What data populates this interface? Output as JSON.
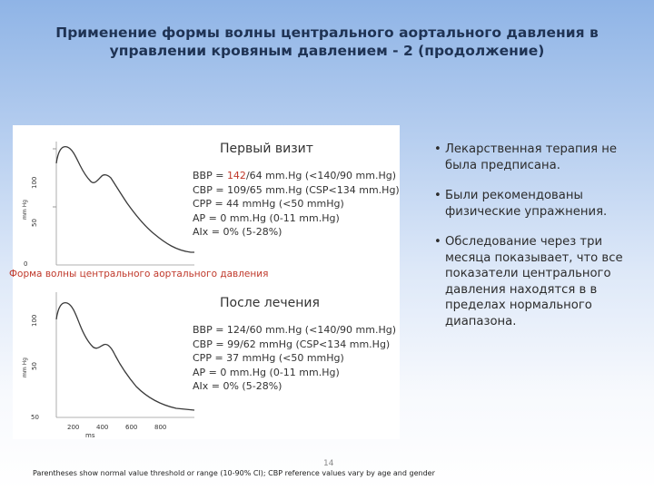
{
  "title": {
    "line1": "Применение формы волны центрального аортального давления в",
    "line2": "управлении кровяным давлением - 2 (продолжение)"
  },
  "chart_data": [
    {
      "type": "line",
      "heading": "Первый визит",
      "ylabel": "mm Hg",
      "y_ticks": [
        "0",
        "50",
        "100"
      ],
      "series_shape": "waveform",
      "stats": [
        {
          "prefix": "BBP = ",
          "highlight": "142",
          "suffix": "/64 mm.Hg (<140/90 mm.Hg)"
        },
        {
          "prefix": "CBP = 109/65 mm.Hg (CSP<134 mm.Hg)",
          "highlight": "",
          "suffix": ""
        },
        {
          "prefix": "CPP = 44 mmHg (<50 mmHg)",
          "highlight": "",
          "suffix": ""
        },
        {
          "prefix": "AP = 0 mm.Hg (0-11 mm.Hg)",
          "highlight": "",
          "suffix": ""
        },
        {
          "prefix": "AIx = 0% (5-28%)",
          "highlight": "",
          "suffix": ""
        }
      ]
    },
    {
      "type": "line",
      "heading": "После лечения",
      "ylabel": "mm Hg",
      "xlabel": "ms",
      "y_ticks": [
        "50",
        "50",
        "100"
      ],
      "x_ticks": [
        "200",
        "400",
        "600",
        "800"
      ],
      "series_shape": "waveform",
      "stats": [
        {
          "prefix": "BBP = 124/60 mm.Hg (<140/90 mm.Hg)",
          "highlight": "",
          "suffix": ""
        },
        {
          "prefix": "CBP = 99/62 mmHg (CSP<134 mm.Hg)",
          "highlight": "",
          "suffix": ""
        },
        {
          "prefix": "CPP = 37 mmHg (<50 mmHg)",
          "highlight": "",
          "suffix": ""
        },
        {
          "prefix": "AP = 0 mm.Hg (0-11 mm.Hg)",
          "highlight": "",
          "suffix": ""
        },
        {
          "prefix": "AIx = 0% (5-28%)",
          "highlight": "",
          "suffix": ""
        }
      ]
    }
  ],
  "caption": "Форма волны центрального аортального давления",
  "bullets": [
    "Лекарственная терапия не была предписана.",
    "Были рекомендованы физические упражнения.",
    "Обследование через три месяца показывает, что все показатели центрального давления находятся в в пределах нормального диапазона."
  ],
  "page_number": "14",
  "footnote": "Parentheses show normal value threshold or range (10-90% CI); CBP reference values vary by age and gender",
  "colors": {
    "title": "#1f3354",
    "highlight": "#c0392b",
    "curve": "#3a3a3a"
  }
}
